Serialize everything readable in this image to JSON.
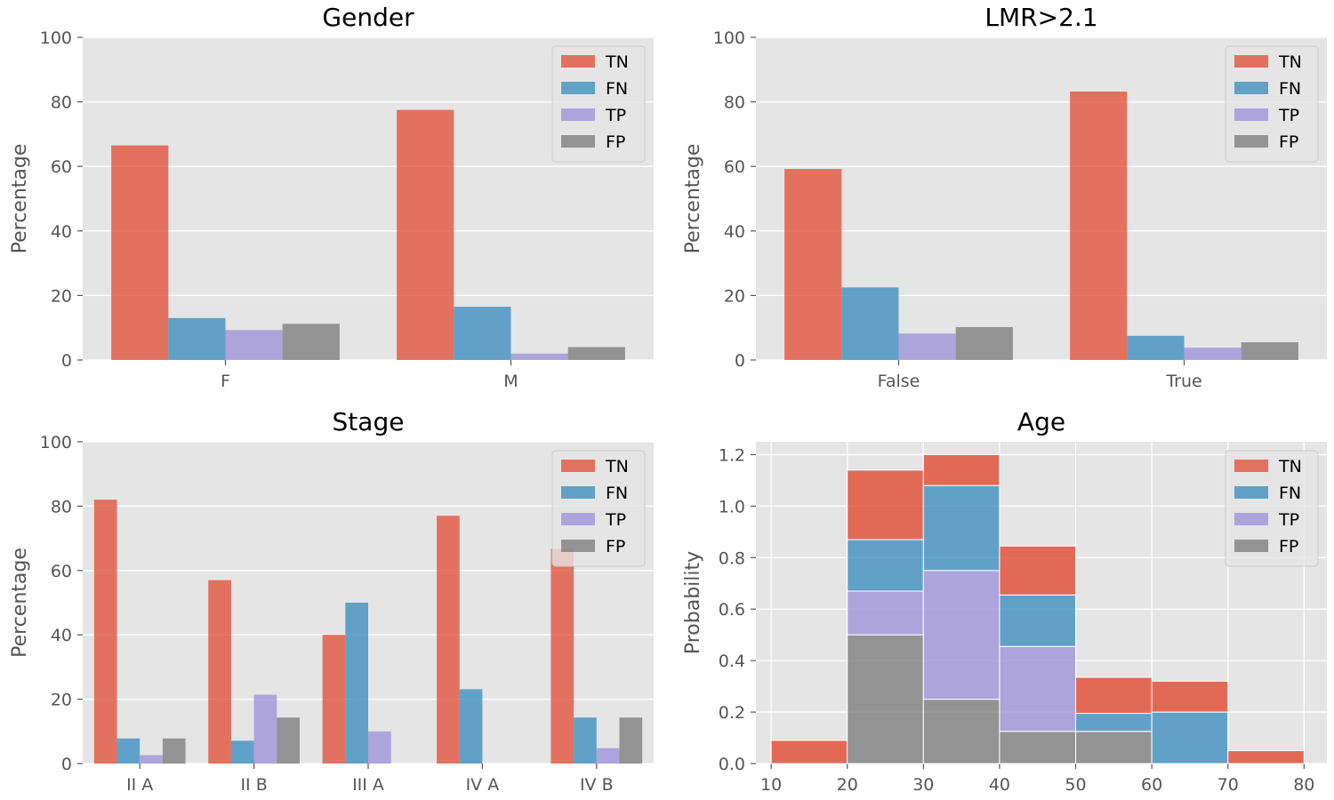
{
  "colors": {
    "TN": "#E24A33",
    "FN": "#348ABD",
    "TP": "#988ED5",
    "FP": "#777777",
    "panel_bg": "#E5E5E5",
    "grid": "#FFFFFF"
  },
  "chart_data": [
    {
      "type": "bar",
      "title": "Gender",
      "ylabel": "Percentage",
      "ylim": [
        0,
        100
      ],
      "yticks": [
        "0",
        "20",
        "40",
        "60",
        "80",
        "100"
      ],
      "categories": [
        "F",
        "M"
      ],
      "legend": "top-right",
      "series": [
        {
          "name": "TN",
          "values": [
            66.5,
            77.5
          ]
        },
        {
          "name": "FN",
          "values": [
            13,
            16.5
          ]
        },
        {
          "name": "TP",
          "values": [
            9.3,
            2
          ]
        },
        {
          "name": "FP",
          "values": [
            11.2,
            4
          ]
        }
      ]
    },
    {
      "type": "bar",
      "title": "LMR>2.1",
      "ylabel": "Percentage",
      "ylim": [
        0,
        100
      ],
      "yticks": [
        "0",
        "20",
        "40",
        "60",
        "80",
        "100"
      ],
      "categories": [
        "False",
        "True"
      ],
      "legend": "top-right",
      "series": [
        {
          "name": "TN",
          "values": [
            59.2,
            83.2
          ]
        },
        {
          "name": "FN",
          "values": [
            22.5,
            7.5
          ]
        },
        {
          "name": "TP",
          "values": [
            8.2,
            3.8
          ]
        },
        {
          "name": "FP",
          "values": [
            10.2,
            5.5
          ]
        }
      ]
    },
    {
      "type": "bar",
      "title": "Stage",
      "ylabel": "Percentage",
      "ylim": [
        0,
        100
      ],
      "yticks": [
        "0",
        "20",
        "40",
        "60",
        "80",
        "100"
      ],
      "categories": [
        "II A",
        "II B",
        "III A",
        "IV A",
        "IV B"
      ],
      "legend": "top-right",
      "series": [
        {
          "name": "TN",
          "values": [
            82,
            57,
            40,
            77,
            66.7
          ]
        },
        {
          "name": "FN",
          "values": [
            7.8,
            7.1,
            50,
            23.1,
            14.3
          ]
        },
        {
          "name": "TP",
          "values": [
            2.6,
            21.4,
            10,
            0,
            4.8
          ]
        },
        {
          "name": "FP",
          "values": [
            7.8,
            14.3,
            0,
            0,
            14.3
          ]
        }
      ]
    },
    {
      "type": "area",
      "title": "Age",
      "ylabel": "Probability",
      "xlim": [
        8,
        83
      ],
      "ylim": [
        0,
        1.25
      ],
      "xticks": [
        "10",
        "20",
        "30",
        "40",
        "50",
        "60",
        "70",
        "80"
      ],
      "yticks": [
        "0.0",
        "0.2",
        "0.4",
        "0.6",
        "0.8",
        "1.0",
        "1.2"
      ],
      "bin_edges": [
        10,
        20,
        30,
        40,
        50,
        60,
        70,
        80
      ],
      "stacked": true,
      "legend": "top-right",
      "series": [
        {
          "name": "TN",
          "values": [
            0.09,
            0.27,
            0.12,
            0.19,
            0.14,
            0.12,
            0.05
          ]
        },
        {
          "name": "FN",
          "values": [
            0,
            0.2,
            0.33,
            0.2,
            0.07,
            0.2,
            0
          ]
        },
        {
          "name": "TP",
          "values": [
            0,
            0.17,
            0.5,
            0.33,
            0,
            0,
            0
          ]
        },
        {
          "name": "FP",
          "values": [
            0,
            0.5,
            0.25,
            0.125,
            0.125,
            0,
            0
          ]
        }
      ]
    }
  ]
}
